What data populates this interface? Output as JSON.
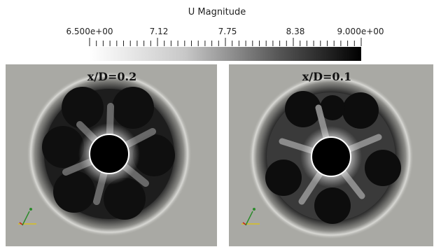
{
  "colorbar": {
    "title": "U Magnitude",
    "tick_labels": [
      "6.500e+00",
      "7.12",
      "7.75",
      "8.38",
      "9.000e+00"
    ],
    "range": [
      6.5,
      9.0
    ],
    "color_low": "#ffffff",
    "color_high": "#000000"
  },
  "panels": [
    {
      "label": "x/D=0.2"
    },
    {
      "label": "x/D=0.1"
    }
  ],
  "colors": {
    "background": "#a9a9a4",
    "wake": "#1a1a1a",
    "core": "#000000"
  },
  "icons": [
    "axes-triad-icon"
  ]
}
